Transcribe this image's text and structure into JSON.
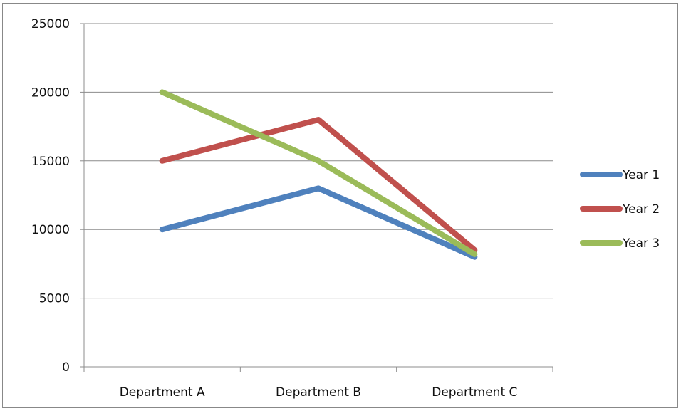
{
  "chart_data": {
    "type": "line",
    "categories": [
      "Department A",
      "Department B",
      "Department C"
    ],
    "series": [
      {
        "name": "Year 1",
        "values": [
          10000,
          13000,
          8000
        ],
        "color": "#4F81BD"
      },
      {
        "name": "Year 2",
        "values": [
          15000,
          18000,
          8500
        ],
        "color": "#C0504D"
      },
      {
        "name": "Year 3",
        "values": [
          20000,
          15000,
          8200
        ],
        "color": "#9BBB59"
      }
    ],
    "y_ticks": [
      "0",
      "5000",
      "10000",
      "15000",
      "20000",
      "25000"
    ],
    "ylim": [
      0,
      25000
    ],
    "grid": true,
    "legend": "right"
  }
}
